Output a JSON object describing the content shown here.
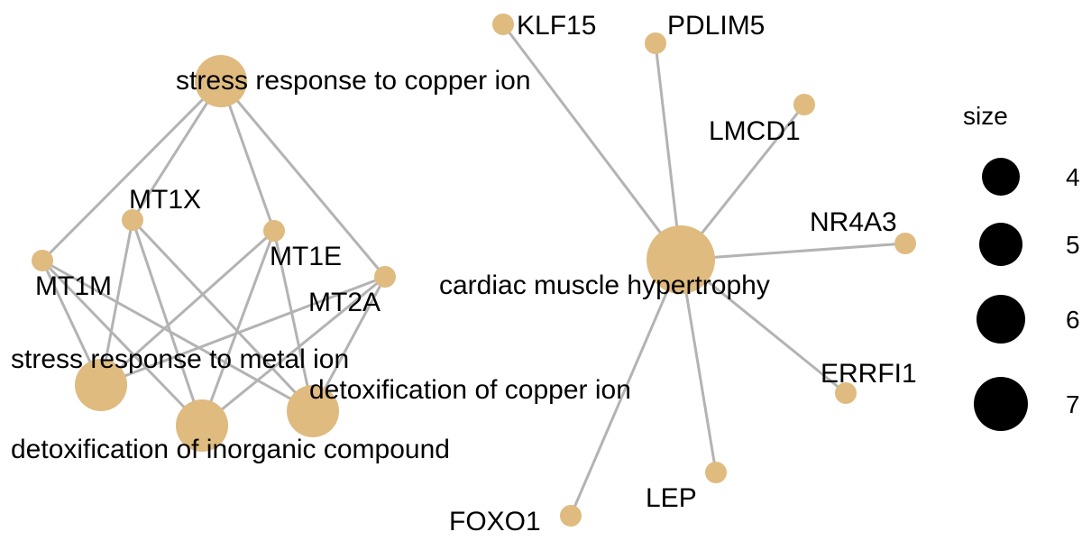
{
  "network": {
    "node_color": "#dfbb80",
    "edge_color": "#b3b3b3",
    "nodes": [
      {
        "id": "stress_copper",
        "label": "stress response to copper ion",
        "type": "term",
        "size": 5
      },
      {
        "id": "stress_metal",
        "label": "stress response to metal ion",
        "type": "term",
        "size": 5
      },
      {
        "id": "detox_inorganic",
        "label": "detoxification of inorganic compound",
        "type": "term",
        "size": 5
      },
      {
        "id": "detox_copper",
        "label": "detoxification of copper ion",
        "type": "term",
        "size": 5
      },
      {
        "id": "cardiac",
        "label": "cardiac muscle hypertrophy",
        "type": "term",
        "size": 7
      },
      {
        "id": "MT1X",
        "label": "MT1X",
        "type": "gene"
      },
      {
        "id": "MT1E",
        "label": "MT1E",
        "type": "gene"
      },
      {
        "id": "MT1M",
        "label": "MT1M",
        "type": "gene"
      },
      {
        "id": "MT2A",
        "label": "MT2A",
        "type": "gene"
      },
      {
        "id": "KLF15",
        "label": "KLF15",
        "type": "gene"
      },
      {
        "id": "PDLIM5",
        "label": "PDLIM5",
        "type": "gene"
      },
      {
        "id": "LMCD1",
        "label": "LMCD1",
        "type": "gene"
      },
      {
        "id": "NR4A3",
        "label": "NR4A3",
        "type": "gene"
      },
      {
        "id": "ERRFI1",
        "label": "ERRFI1",
        "type": "gene"
      },
      {
        "id": "LEP",
        "label": "LEP",
        "type": "gene"
      },
      {
        "id": "FOXO1",
        "label": "FOXO1",
        "type": "gene"
      }
    ],
    "edges": [
      [
        "stress_copper",
        "MT1X"
      ],
      [
        "stress_copper",
        "MT1E"
      ],
      [
        "stress_copper",
        "MT1M"
      ],
      [
        "stress_copper",
        "MT2A"
      ],
      [
        "stress_metal",
        "MT1X"
      ],
      [
        "stress_metal",
        "MT1E"
      ],
      [
        "stress_metal",
        "MT1M"
      ],
      [
        "stress_metal",
        "MT2A"
      ],
      [
        "detox_inorganic",
        "MT1X"
      ],
      [
        "detox_inorganic",
        "MT1E"
      ],
      [
        "detox_inorganic",
        "MT1M"
      ],
      [
        "detox_inorganic",
        "MT2A"
      ],
      [
        "detox_copper",
        "MT1X"
      ],
      [
        "detox_copper",
        "MT1E"
      ],
      [
        "detox_copper",
        "MT1M"
      ],
      [
        "detox_copper",
        "MT2A"
      ],
      [
        "cardiac",
        "KLF15"
      ],
      [
        "cardiac",
        "PDLIM5"
      ],
      [
        "cardiac",
        "LMCD1"
      ],
      [
        "cardiac",
        "NR4A3"
      ],
      [
        "cardiac",
        "ERRFI1"
      ],
      [
        "cardiac",
        "LEP"
      ],
      [
        "cardiac",
        "FOXO1"
      ]
    ]
  },
  "legend": {
    "title": "size",
    "items": [
      {
        "label": "4",
        "value": 4
      },
      {
        "label": "5",
        "value": 5
      },
      {
        "label": "6",
        "value": 6
      },
      {
        "label": "7",
        "value": 7
      }
    ]
  }
}
